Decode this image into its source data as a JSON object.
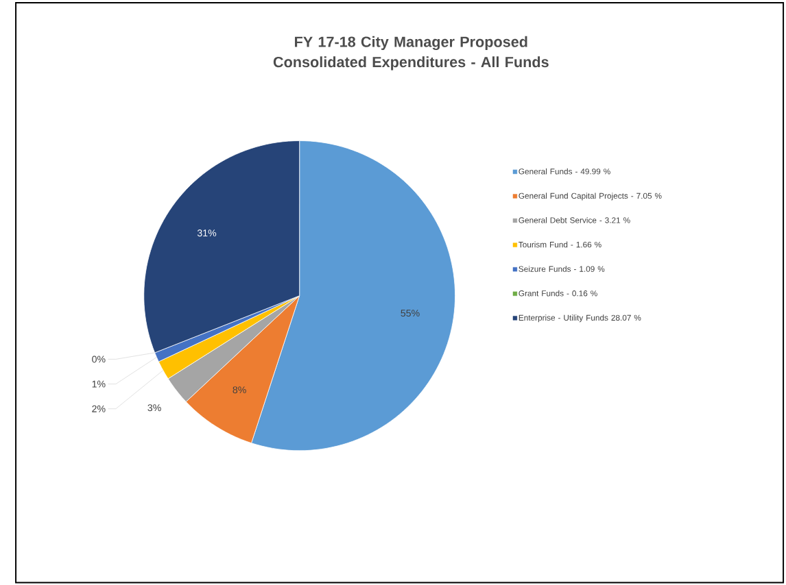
{
  "chart_data": {
    "type": "pie",
    "title": "FY 17-18 City Manager Proposed Consolidated Expenditures - All Funds",
    "categories": [
      "General Funds - 49.99 %",
      "General Fund Capital Projects - 7.05 %",
      "General Debt Service - 3.21 %",
      "Tourism Fund - 1.66 %",
      "Seizure Funds - 1.09 %",
      "Grant Funds - 0.16 %",
      "Enterprise - Utility Funds 28.07 %"
    ],
    "values": [
      55,
      8,
      3,
      2,
      1,
      0,
      31
    ],
    "value_labels": [
      "55%",
      "8%",
      "3%",
      "2%",
      "1%",
      "0%",
      "31%"
    ],
    "colors": [
      "#5b9bd5",
      "#ed7d31",
      "#a5a5a5",
      "#ffc000",
      "#4472c4",
      "#70ad47",
      "#264478"
    ],
    "legend": "right"
  }
}
